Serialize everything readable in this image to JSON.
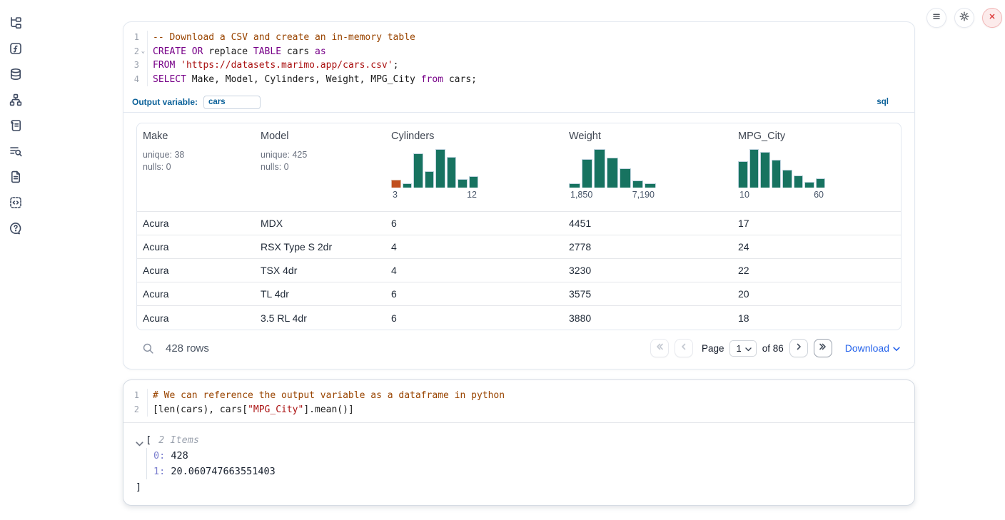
{
  "colors": {
    "accent_blue": "#0b6199",
    "link_blue": "#2563eb",
    "hist_green": "#177360",
    "hist_orange": "#c14f1d",
    "danger_red": "#dd3c3c"
  },
  "sidebar": {
    "icons": [
      "file-tree",
      "function-square",
      "database",
      "dependency-network",
      "scratchpad-scroll",
      "logs-search",
      "documentation-file",
      "snippets-code",
      "help-bubble"
    ]
  },
  "topbar": {
    "buttons": [
      "menu",
      "settings",
      "interrupt"
    ]
  },
  "sql_cell": {
    "language_badge": "sql",
    "output_variable_label": "Output variable:",
    "output_variable_value": "cars",
    "lines": [
      {
        "no": "1",
        "tokens": [
          {
            "c": "comment",
            "t": "-- Download a CSV and create an in-memory table"
          }
        ]
      },
      {
        "no": "2",
        "fold": true,
        "tokens": [
          {
            "c": "kw",
            "t": "CREATE"
          },
          {
            "c": "plain",
            "t": " "
          },
          {
            "c": "kw",
            "t": "OR"
          },
          {
            "c": "plain",
            "t": " replace "
          },
          {
            "c": "kw",
            "t": "TABLE"
          },
          {
            "c": "plain",
            "t": " cars "
          },
          {
            "c": "kw",
            "t": "as"
          }
        ]
      },
      {
        "no": "3",
        "tokens": [
          {
            "c": "kw",
            "t": "FROM"
          },
          {
            "c": "plain",
            "t": " "
          },
          {
            "c": "str",
            "t": "'https://datasets.marimo.app/cars.csv'"
          },
          {
            "c": "plain",
            "t": ";"
          }
        ]
      },
      {
        "no": "4",
        "tokens": [
          {
            "c": "kw",
            "t": "SELECT"
          },
          {
            "c": "plain",
            "t": " Make, Model, Cylinders, Weight, MPG_City "
          },
          {
            "c": "kw",
            "t": "from"
          },
          {
            "c": "plain",
            "t": " cars;"
          }
        ]
      }
    ]
  },
  "table": {
    "columns": [
      {
        "label": "Make",
        "stats": [
          "unique: 38",
          "nulls: 0"
        ]
      },
      {
        "label": "Model",
        "stats": [
          "unique: 425",
          "nulls: 0"
        ]
      },
      {
        "label": "Cylinders",
        "histogram": {
          "bars": [
            20,
            12,
            88,
            42,
            100,
            80,
            22,
            30
          ],
          "first_bar_highlight": true,
          "min_label": "3",
          "max_label": "12"
        }
      },
      {
        "label": "Weight",
        "histogram": {
          "bars": [
            12,
            75,
            100,
            78,
            50,
            18,
            12
          ],
          "first_bar_highlight": false,
          "min_label": "1,850",
          "max_label": "7,190"
        }
      },
      {
        "label": "MPG_City",
        "histogram": {
          "bars": [
            68,
            100,
            92,
            72,
            47,
            32,
            14,
            25
          ],
          "first_bar_highlight": false,
          "min_label": "10",
          "max_label": "60"
        }
      }
    ],
    "rows": [
      [
        "Acura",
        "MDX",
        "6",
        "4451",
        "17"
      ],
      [
        "Acura",
        "RSX Type S 2dr",
        "4",
        "2778",
        "24"
      ],
      [
        "Acura",
        "TSX 4dr",
        "4",
        "3230",
        "22"
      ],
      [
        "Acura",
        "TL 4dr",
        "6",
        "3575",
        "20"
      ],
      [
        "Acura",
        "3.5 RL 4dr",
        "6",
        "3880",
        "18"
      ]
    ],
    "footer": {
      "row_count": "428 rows",
      "page_label": "Page",
      "page_value": "1",
      "of_label": "of 86",
      "download_label": "Download"
    }
  },
  "python_cell": {
    "lines": [
      {
        "no": "1",
        "tokens": [
          {
            "c": "comment",
            "t": "# We can reference the output variable as a dataframe in python"
          }
        ]
      },
      {
        "no": "2",
        "tokens": [
          {
            "c": "plain",
            "t": "[len(cars), cars["
          },
          {
            "c": "str",
            "t": "\"MPG_City\""
          },
          {
            "c": "plain",
            "t": "].mean()]"
          }
        ]
      }
    ]
  },
  "output_tree": {
    "open_bracket": "[",
    "items_label": "2 Items",
    "entries": [
      {
        "key": "0:",
        "value": "428"
      },
      {
        "key": "1:",
        "value": "20.060747663551403"
      }
    ],
    "close_bracket": "]"
  }
}
